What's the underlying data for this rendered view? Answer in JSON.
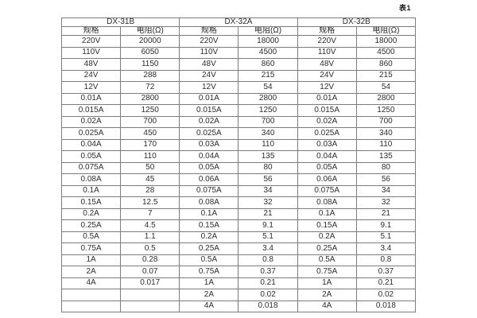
{
  "caption": "表1",
  "table": {
    "groups": [
      {
        "name": "DX-31B",
        "col_headers": [
          "规格",
          "电阻(Ω)"
        ]
      },
      {
        "name": "DX-32A",
        "col_headers": [
          "规格",
          "电阻(Ω)"
        ]
      },
      {
        "name": "DX-32B",
        "col_headers": [
          "规格",
          "电阻(Ω)"
        ]
      }
    ],
    "rows": [
      [
        "220V",
        "20000",
        "220V",
        "18000",
        "220V",
        "18000"
      ],
      [
        "110V",
        "6050",
        "110V",
        "4500",
        "110V",
        "4500"
      ],
      [
        "48V",
        "1150",
        "48V",
        "860",
        "48V",
        "860"
      ],
      [
        "24V",
        "288",
        "24V",
        "215",
        "24V",
        "215"
      ],
      [
        "12V",
        "72",
        "12V",
        "54",
        "12V",
        "54"
      ],
      [
        "0.01A",
        "2800",
        "0.01A",
        "2800",
        "0.01A",
        "2800"
      ],
      [
        "0.015A",
        "1250",
        "0.015A",
        "1250",
        "0.015A",
        "1250"
      ],
      [
        "0.02A",
        "700",
        "0.02A",
        "700",
        "0.02A",
        "700"
      ],
      [
        "0.025A",
        "450",
        "0.025A",
        "340",
        "0.025A",
        "340"
      ],
      [
        "0.04A",
        "170",
        "0.03A",
        "110",
        "0.03A",
        "110"
      ],
      [
        "0.05A",
        "110",
        "0.04A",
        "135",
        "0.04A",
        "135"
      ],
      [
        "0.075A",
        "50",
        "0.05A",
        "80",
        "0.05A",
        "80"
      ],
      [
        "0.08A",
        "45",
        "0.06A",
        "56",
        "0.06A",
        "56"
      ],
      [
        "0.1A",
        "28",
        "0.075A",
        "34",
        "0.075A",
        "34"
      ],
      [
        "0.15A",
        "12.5",
        "0.08A",
        "32",
        "0.08A",
        "32"
      ],
      [
        "0.2A",
        "7",
        "0.1A",
        "21",
        "0.1A",
        "21"
      ],
      [
        "0.25A",
        "4.5",
        "0.15A",
        "9.1",
        "0.15A",
        "9.1"
      ],
      [
        "0.5A",
        "1.1",
        "0.2A",
        "5.1",
        "0.2A",
        "5.1"
      ],
      [
        "0.75A",
        "0.5",
        "0.25A",
        "3.4",
        "0.25A",
        "3.4"
      ],
      [
        "1A",
        "0.28",
        "0.5A",
        "0.8",
        "0.5A",
        "0.8"
      ],
      [
        "2A",
        "0.07",
        "0.75A",
        "0.37",
        "0.75A",
        "0.37"
      ],
      [
        "4A",
        "0.017",
        "1A",
        "0.21",
        "1A",
        "0.21"
      ],
      [
        "",
        "",
        "2A",
        "0.02",
        "2A",
        "0.02"
      ],
      [
        "",
        "",
        "4A",
        "0.018",
        "4A",
        "0.018"
      ]
    ]
  }
}
